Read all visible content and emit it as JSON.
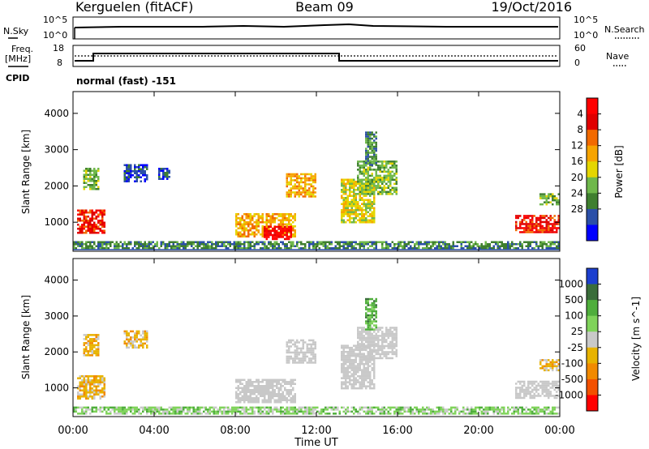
{
  "header": {
    "radar": "Kerguelen (fitACF)",
    "beam": "Beam 09",
    "date": "19/Oct/2016"
  },
  "panels": {
    "nsky_label": "N.Sky",
    "nsearch_label": "N.Search",
    "noise_ticks": [
      "10^5",
      "10^0"
    ],
    "freq_label_1": "Freq.",
    "freq_label_2": "[MHz]",
    "freq_ticks": [
      "18",
      "8"
    ],
    "nave_label": "Nave",
    "nave_ticks": [
      "60",
      "0"
    ],
    "cpid_label": "CPID",
    "cpid_value": "normal (fast) -151"
  },
  "colors": {
    "power_scale": [
      "#0000ff",
      "#2b4fa8",
      "#3f7f2f",
      "#6fb84b",
      "#e5d600",
      "#f7a400",
      "#f26a00",
      "#e00000",
      "#ff0000"
    ],
    "velocity_scale": [
      "#1c3fcf",
      "#3a6d3a",
      "#4fae3c",
      "#7fd35a",
      "#c9c9c9",
      "#e8b300",
      "#f28a00",
      "#f35000",
      "#ff0000"
    ],
    "ground_scatter": "#c8c8c8"
  },
  "chart_data": [
    {
      "type": "heatmap",
      "name": "power",
      "ylabel": "Slant Range [km]",
      "yticks": [
        "1000",
        "2000",
        "3000",
        "4000"
      ],
      "ylim": [
        200,
        4600
      ],
      "xlim": [
        "00:00",
        "24:00"
      ],
      "colorbar_label": "Power [dB]",
      "colorbar_ticks": [
        "4",
        "8",
        "12",
        "16",
        "20",
        "24",
        "28"
      ],
      "patches": [
        {
          "t0": 0.2,
          "t1": 1.6,
          "r0": 700,
          "r1": 1350,
          "level": 7
        },
        {
          "t0": 0.5,
          "t1": 1.3,
          "r0": 1900,
          "r1": 2500,
          "level": 3
        },
        {
          "t0": 2.5,
          "t1": 3.7,
          "r0": 2100,
          "r1": 2600,
          "level": 1
        },
        {
          "t0": 4.2,
          "t1": 4.8,
          "r0": 2200,
          "r1": 2500,
          "level": 1
        },
        {
          "t0": 8.0,
          "t1": 11.0,
          "r0": 600,
          "r1": 1250,
          "level": 5
        },
        {
          "t0": 9.4,
          "t1": 10.8,
          "r0": 550,
          "r1": 900,
          "level": 8
        },
        {
          "t0": 10.5,
          "t1": 12.0,
          "r0": 1700,
          "r1": 2350,
          "level": 5
        },
        {
          "t0": 13.2,
          "t1": 14.8,
          "r0": 1000,
          "r1": 2200,
          "level": 4
        },
        {
          "t0": 14.0,
          "t1": 16.0,
          "r0": 1800,
          "r1": 2700,
          "level": 3
        },
        {
          "t0": 14.4,
          "t1": 15.0,
          "r0": 2600,
          "r1": 3500,
          "level": 2
        },
        {
          "t0": 21.8,
          "t1": 24.0,
          "r0": 700,
          "r1": 1200,
          "level": 7
        },
        {
          "t0": 23.0,
          "t1": 24.0,
          "r0": 1500,
          "r1": 1800,
          "level": 3
        },
        {
          "t0": 0.0,
          "t1": 24.0,
          "r0": 300,
          "r1": 480,
          "level": 2
        }
      ]
    },
    {
      "type": "heatmap",
      "name": "velocity",
      "ylabel": "Slant Range [km]",
      "yticks": [
        "1000",
        "2000",
        "3000",
        "4000"
      ],
      "ylim": [
        200,
        4600
      ],
      "xlabel": "Time UT",
      "xticks": [
        "00:00",
        "04:00",
        "08:00",
        "12:00",
        "16:00",
        "20:00",
        "00:00"
      ],
      "xlim": [
        "00:00",
        "24:00"
      ],
      "colorbar_label": "Velocity [m s^-1]",
      "colorbar_ticks": [
        "1000",
        "500",
        "100",
        "25",
        "-25",
        "-100",
        "-500",
        "-1000"
      ],
      "patches": [
        {
          "t0": 0.2,
          "t1": 1.6,
          "r0": 700,
          "r1": 1350,
          "level": 5
        },
        {
          "t0": 0.5,
          "t1": 1.3,
          "r0": 1900,
          "r1": 2500,
          "level": 5
        },
        {
          "t0": 2.5,
          "t1": 3.7,
          "r0": 2100,
          "r1": 2600,
          "level": 5
        },
        {
          "t0": 8.0,
          "t1": 11.0,
          "r0": 600,
          "r1": 1250,
          "level": 4
        },
        {
          "t0": 10.5,
          "t1": 12.0,
          "r0": 1700,
          "r1": 2350,
          "level": 4
        },
        {
          "t0": 13.2,
          "t1": 14.8,
          "r0": 1000,
          "r1": 2200,
          "level": 4
        },
        {
          "t0": 14.0,
          "t1": 16.0,
          "r0": 1800,
          "r1": 2700,
          "level": 4
        },
        {
          "t0": 14.4,
          "t1": 15.0,
          "r0": 2600,
          "r1": 3500,
          "level": 2
        },
        {
          "t0": 21.8,
          "t1": 24.0,
          "r0": 700,
          "r1": 1200,
          "level": 4
        },
        {
          "t0": 23.0,
          "t1": 24.0,
          "r0": 1500,
          "r1": 1800,
          "level": 5
        },
        {
          "t0": 0.0,
          "t1": 24.0,
          "r0": 300,
          "r1": 480,
          "level": 3
        }
      ]
    }
  ]
}
